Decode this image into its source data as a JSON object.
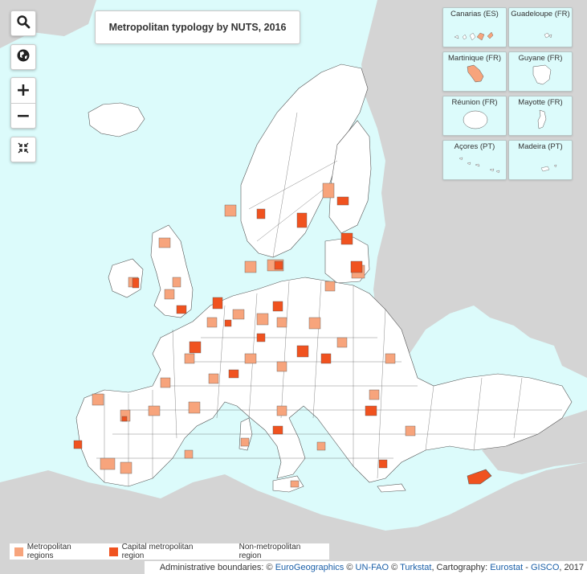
{
  "map": {
    "title": "Metropolitan typology by NUTS, 2016",
    "colors": {
      "sea": "#dcfbfb",
      "land_outside": "#d4d4d4",
      "non_metro": "#ffffff",
      "metro": "#f7a47c",
      "capital": "#f0521f",
      "border": "#555555"
    }
  },
  "tools": {
    "search_icon": "search-icon",
    "globe_icon": "globe-icon",
    "zoom_in_label": "+",
    "zoom_out_label": "−",
    "fullscreen_icon": "exit-fullscreen-icon"
  },
  "insets": [
    {
      "label": "Canarias (ES)"
    },
    {
      "label": "Guadeloupe (FR)"
    },
    {
      "label": "Martinique (FR)"
    },
    {
      "label": "Guyane (FR)"
    },
    {
      "label": "Réunion (FR)"
    },
    {
      "label": "Mayotte (FR)"
    },
    {
      "label": "Açores (PT)"
    },
    {
      "label": "Madeira (PT)"
    }
  ],
  "legend": {
    "items": [
      {
        "label": "Metropolitan regions",
        "color": "#f7a47c"
      },
      {
        "label": "Capital metropolitan region",
        "color": "#f0521f"
      },
      {
        "label": "Non-metropolitan region",
        "color": "#ffffff"
      }
    ]
  },
  "attribution": {
    "prefix": "Administrative boundaries: © ",
    "eurogeographics": "EuroGeographics",
    "copy1": " © ",
    "unfao": "UN-FAO",
    "copy2": " © ",
    "turkstat": "Turkstat",
    "cartography": ", Cartography: ",
    "eurostat": "Eurostat",
    "dash": " - ",
    "gisco": "GISCO",
    "year": ", 2017"
  }
}
